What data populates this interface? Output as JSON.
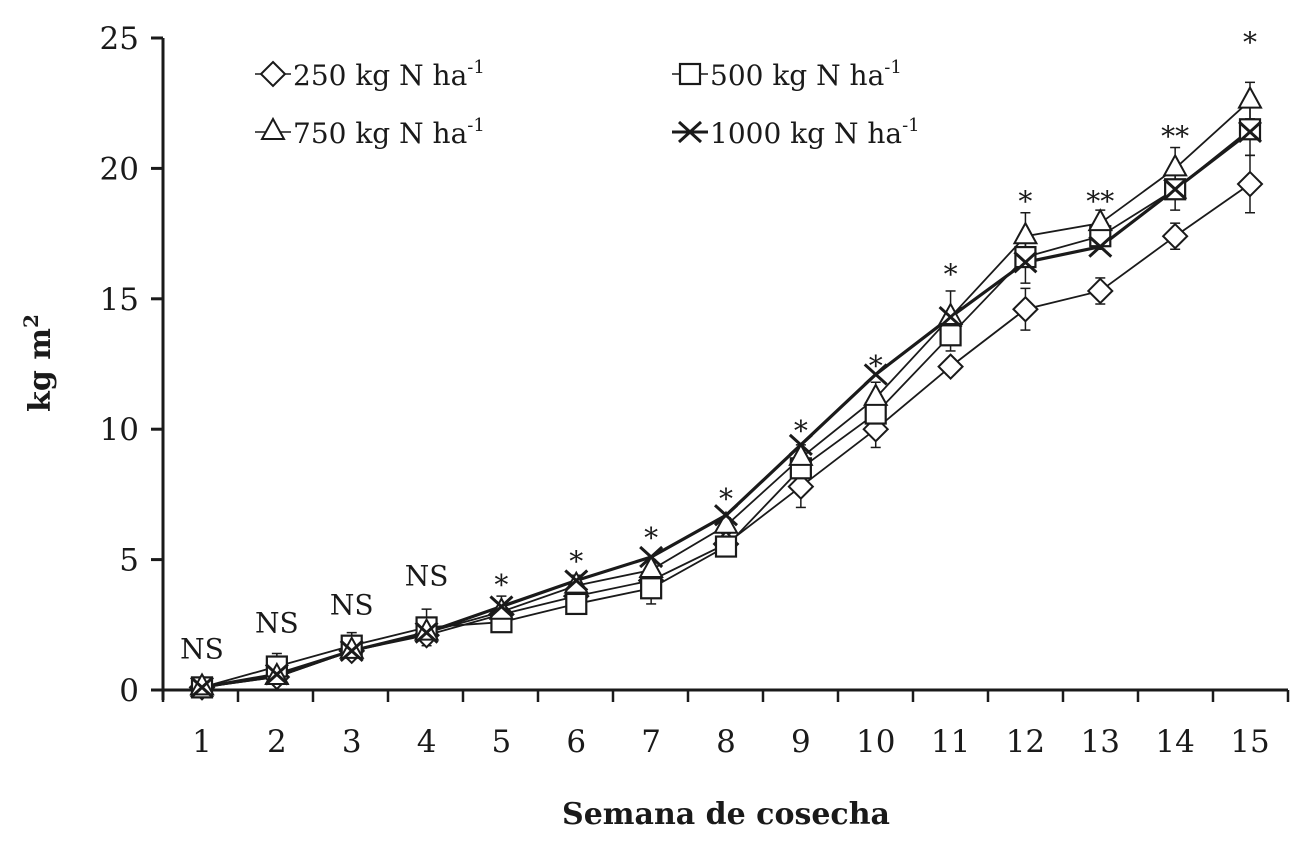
{
  "chart_data": {
    "type": "line",
    "title": "",
    "xlabel": "Semana de cosecha",
    "ylabel": "kg m",
    "ylabel_sup": "2",
    "xlim": [
      0.5,
      15.5
    ],
    "ylim": [
      0,
      25
    ],
    "grid": false,
    "legend_position": "top-left",
    "x": [
      1,
      2,
      3,
      4,
      5,
      6,
      7,
      8,
      9,
      10,
      11,
      12,
      13,
      14,
      15
    ],
    "x_tick_labels": [
      "1",
      "2",
      "3",
      "4",
      "5",
      "6",
      "7",
      "8",
      "9",
      "10",
      "11",
      "12",
      "13",
      "14",
      "15"
    ],
    "y_ticks": [
      0,
      5,
      10,
      15,
      20,
      25
    ],
    "y_tick_labels": [
      "0",
      "5",
      "10",
      "15",
      "20",
      "25"
    ],
    "series": [
      {
        "name": "250 kg N ha",
        "sup": "-1",
        "marker": "diamond",
        "values": [
          0.1,
          0.5,
          1.5,
          2.1,
          2.9,
          3.6,
          4.2,
          5.6,
          7.8,
          10.0,
          12.4,
          14.6,
          15.3,
          17.4,
          19.4
        ],
        "errors": [
          0.1,
          0.1,
          0.2,
          0.3,
          0.3,
          0.3,
          0.3,
          0.3,
          0.8,
          0.7,
          0.3,
          0.8,
          0.5,
          0.5,
          1.1
        ]
      },
      {
        "name": "500 kg N ha",
        "sup": "-1",
        "marker": "square",
        "values": [
          0.1,
          0.9,
          1.7,
          2.4,
          2.6,
          3.3,
          3.9,
          5.5,
          8.5,
          10.6,
          13.6,
          16.6,
          17.4,
          19.2,
          21.5
        ],
        "errors": [
          0.1,
          0.5,
          0.5,
          0.7,
          0.3,
          0.3,
          0.6,
          0.3,
          0.4,
          0.5,
          0.6,
          1.0,
          0.5,
          0.8,
          1.0
        ]
      },
      {
        "name": "750 kg N ha",
        "sup": "-1",
        "marker": "triangle",
        "values": [
          0.1,
          0.5,
          1.5,
          2.2,
          3.0,
          4.0,
          4.6,
          6.3,
          8.9,
          11.2,
          14.3,
          17.4,
          17.9,
          20.0,
          22.6
        ],
        "errors": [
          0.1,
          0.1,
          0.2,
          0.3,
          0.6,
          0.4,
          0.4,
          0.3,
          0.5,
          0.6,
          1.0,
          0.9,
          0.5,
          0.8,
          0.7
        ]
      },
      {
        "name": "1000 kg N ha",
        "sup": "-1",
        "marker": "cross",
        "values": [
          0.1,
          0.6,
          1.5,
          2.2,
          3.2,
          4.2,
          5.1,
          6.7,
          9.4,
          12.1,
          14.3,
          16.4,
          17.0,
          19.2,
          21.4
        ],
        "errors": [
          0,
          0,
          0,
          0,
          0,
          0,
          0,
          0,
          0,
          0,
          0,
          0,
          0,
          0,
          0
        ]
      }
    ],
    "annotations": [
      "NS",
      "NS",
      "NS",
      "NS",
      "*",
      "*",
      "*",
      "*",
      "*",
      "*",
      "*",
      "*",
      "**",
      "**",
      "*"
    ],
    "annotation_y": [
      1.2,
      2.2,
      2.9,
      4.0,
      4.2,
      5.1,
      6.0,
      7.5,
      10.1,
      12.6,
      16.1,
      18.9,
      18.9,
      21.4,
      25.0
    ]
  }
}
